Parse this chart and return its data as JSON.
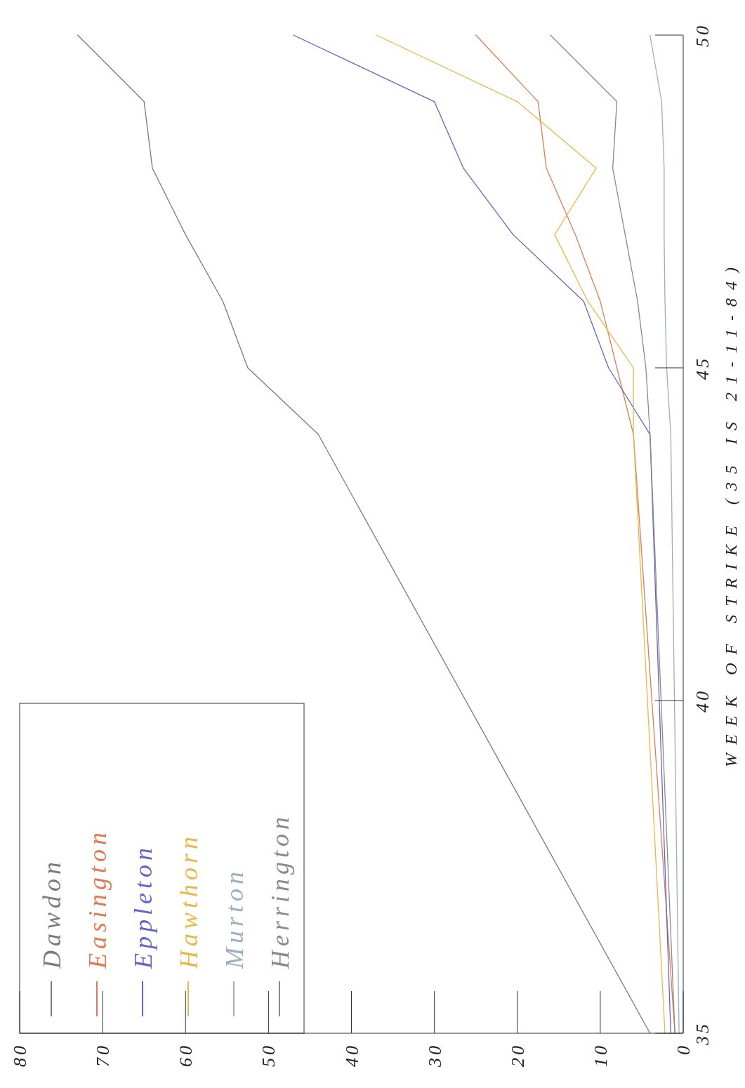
{
  "chart_data": {
    "type": "line",
    "y2label": "WEEK OF STRIKE (35 IS 21-11-84)",
    "xlim": [
      80,
      0
    ],
    "xticks": [
      0,
      10,
      20,
      30,
      40,
      50,
      60,
      70,
      80
    ],
    "y2lim": [
      35,
      50
    ],
    "y2ticks": [
      35,
      40,
      45,
      50
    ],
    "grid": false,
    "legend": "bottom left",
    "series": [
      {
        "name": "Dawdon",
        "color": "#7a7a7a",
        "axis": "y2",
        "x": [
          4,
          44,
          52.5,
          55.5,
          60,
          64,
          65,
          73
        ],
        "values": [
          35,
          44,
          45,
          46,
          47,
          48,
          49,
          50
        ]
      },
      {
        "name": "Easington",
        "color": "#e07a52",
        "axis": "y2",
        "x": [
          1,
          6,
          8,
          10,
          13,
          16.5,
          17.5,
          25
        ],
        "values": [
          35,
          44,
          45,
          46,
          47,
          48,
          49,
          50
        ]
      },
      {
        "name": "Eppleton",
        "color": "#6464c8",
        "axis": "y2",
        "x": [
          1.5,
          4,
          9,
          12,
          20.5,
          26.5,
          30,
          47
        ],
        "values": [
          35,
          44,
          45,
          46,
          47,
          48,
          49,
          50
        ]
      },
      {
        "name": "Hawthorn",
        "color": "#e8b84a",
        "axis": "y2",
        "x": [
          2.2,
          6,
          6,
          11.5,
          15.5,
          10.5,
          20,
          37
        ],
        "values": [
          35,
          44,
          45,
          46,
          47,
          48,
          49,
          50
        ]
      },
      {
        "name": "Murton",
        "color": "#9ab0c0",
        "axis": "y2",
        "x": [
          0.5,
          1.5,
          2,
          2.2,
          2.3,
          2.3,
          2.6,
          4
        ],
        "values": [
          35,
          44,
          45,
          46,
          47,
          48,
          49,
          50
        ]
      },
      {
        "name": "Herrington",
        "color": "#8a8a8a",
        "axis": "y2",
        "x": [
          1,
          4,
          4.5,
          5.5,
          7,
          8.5,
          8,
          16
        ],
        "values": [
          35,
          44,
          45,
          46,
          47,
          48,
          49,
          50
        ]
      }
    ]
  }
}
